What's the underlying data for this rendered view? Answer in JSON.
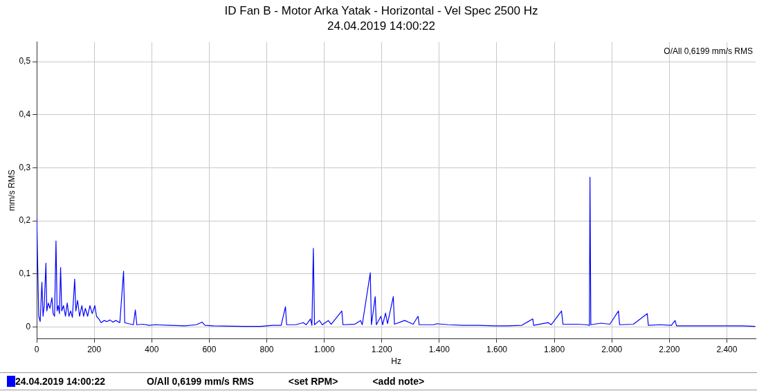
{
  "chart_data": {
    "type": "line",
    "title": "ID Fan B - Motor Arka Yatak - Horizontal - Vel Spec 2500 Hz",
    "subtitle": "24.04.2019 14:00:22",
    "xlabel": "Hz",
    "ylabel": "mm/s RMS",
    "annotations": [
      "O/All 0,6199 mm/s RMS",
      "O/All 0,6199 mm/s RMS",
      "<set RPM>",
      "<add note>"
    ],
    "xlim": [
      0,
      2500
    ],
    "xticks": [
      0,
      200,
      400,
      600,
      800,
      {
        "value": 1000,
        "label": "1.000"
      },
      {
        "value": 1200,
        "label": "1.200"
      },
      {
        "value": 1400,
        "label": "1.400"
      },
      {
        "value": 1600,
        "label": "1.600"
      },
      {
        "value": 1800,
        "label": "1.800"
      },
      {
        "value": 2000,
        "label": "2.000"
      },
      {
        "value": 2200,
        "label": "2.200"
      },
      {
        "value": 2400,
        "label": "2.400"
      }
    ],
    "ylim": [
      -0.022,
      0.537
    ],
    "yticks": [
      0,
      {
        "value": 0.1,
        "label": "0,1"
      },
      {
        "value": 0.2,
        "label": "0,2"
      },
      {
        "value": 0.3,
        "label": "0,3"
      },
      {
        "value": 0.4,
        "label": "0,4"
      },
      {
        "value": 0.5,
        "label": "0,5"
      }
    ],
    "grid": true,
    "legend": "bottom",
    "marker": "none",
    "line_style": "solid",
    "series": [
      {
        "name": "24.04.2019 14:00:22",
        "color": "#0000ff",
        "x": [
          0,
          7,
          12,
          18,
          22,
          26,
          32,
          35,
          40,
          46,
          53,
          57,
          62,
          67,
          71,
          75,
          79,
          83,
          87,
          93,
          100,
          106,
          112,
          118,
          124,
          132,
          136,
          142,
          149,
          157,
          163,
          169,
          177,
          185,
          193,
          202,
          208,
          216,
          224,
          234,
          244,
          255,
          265,
          275,
          289,
          302,
          306,
          320,
          336,
          343,
          348,
          371,
          391,
          412,
          463,
          514,
          555,
          575,
          585,
          616,
          718,
          779,
          820,
          850,
          865,
          869,
          901,
          927,
          937,
          952,
          957,
          962,
          966,
          983,
          993,
          1014,
          1024,
          1061,
          1065,
          1106,
          1126,
          1132,
          1160,
          1164,
          1177,
          1181,
          1197,
          1203,
          1213,
          1220,
          1240,
          1244,
          1279,
          1289,
          1309,
          1326,
          1330,
          1381,
          1391,
          1432,
          1483,
          1534,
          1595,
          1636,
          1687,
          1725,
          1728,
          1779,
          1789,
          1825,
          1830,
          1881,
          1911,
          1922,
          1924,
          1927,
          1962,
          1993,
          2023,
          2027,
          2075,
          2123,
          2127,
          2166,
          2207,
          2220,
          2225,
          2299,
          2350,
          2452,
          2499
        ],
        "values": [
          0.206,
          0.02,
          0.01,
          0.084,
          0.02,
          0.04,
          0.12,
          0.03,
          0.045,
          0.035,
          0.055,
          0.025,
          0.02,
          0.162,
          0.03,
          0.04,
          0.025,
          0.112,
          0.03,
          0.04,
          0.02,
          0.045,
          0.02,
          0.03,
          0.018,
          0.09,
          0.03,
          0.05,
          0.02,
          0.04,
          0.02,
          0.035,
          0.02,
          0.04,
          0.025,
          0.04,
          0.02,
          0.015,
          0.008,
          0.012,
          0.01,
          0.013,
          0.009,
          0.012,
          0.008,
          0.105,
          0.008,
          0.006,
          0.004,
          0.032,
          0.004,
          0.005,
          0.003,
          0.004,
          0.003,
          0.002,
          0.004,
          0.009,
          0.003,
          0.002,
          0.001,
          0.001,
          0.003,
          0.003,
          0.038,
          0.004,
          0.004,
          0.008,
          0.004,
          0.015,
          0.003,
          0.148,
          0.004,
          0.012,
          0.004,
          0.012,
          0.005,
          0.03,
          0.004,
          0.005,
          0.012,
          0.004,
          0.102,
          0.004,
          0.057,
          0.004,
          0.02,
          0.004,
          0.026,
          0.006,
          0.057,
          0.005,
          0.012,
          0.01,
          0.005,
          0.02,
          0.004,
          0.004,
          0.006,
          0.004,
          0.003,
          0.003,
          0.002,
          0.002,
          0.003,
          0.015,
          0.003,
          0.008,
          0.004,
          0.03,
          0.005,
          0.005,
          0.004,
          0.003,
          0.282,
          0.004,
          0.007,
          0.005,
          0.03,
          0.004,
          0.005,
          0.025,
          0.003,
          0.004,
          0.003,
          0.012,
          0.002,
          0.002,
          0.002,
          0.002,
          0.001
        ]
      }
    ]
  }
}
